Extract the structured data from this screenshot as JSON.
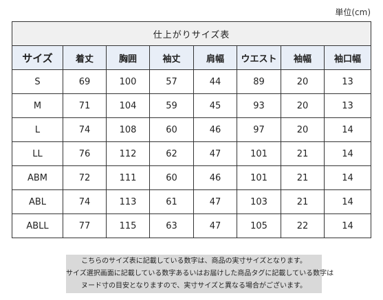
{
  "unit_label": "単位(cm)",
  "table": {
    "title": "仕上がりサイズ表",
    "headers": [
      "サイズ",
      "着丈",
      "胸囲",
      "袖丈",
      "肩幅",
      "ウエスト",
      "袖幅",
      "袖口幅"
    ],
    "rows": [
      [
        "S",
        "69",
        "100",
        "57",
        "44",
        "89",
        "20",
        "13"
      ],
      [
        "M",
        "71",
        "104",
        "59",
        "45",
        "93",
        "20",
        "13"
      ],
      [
        "L",
        "74",
        "108",
        "60",
        "46",
        "97",
        "20",
        "14"
      ],
      [
        "LL",
        "76",
        "112",
        "62",
        "47",
        "101",
        "21",
        "14"
      ],
      [
        "ABM",
        "72",
        "111",
        "60",
        "46",
        "101",
        "21",
        "14"
      ],
      [
        "ABL",
        "74",
        "113",
        "61",
        "47",
        "103",
        "21",
        "14"
      ],
      [
        "ABLL",
        "77",
        "115",
        "63",
        "47",
        "105",
        "22",
        "14"
      ]
    ]
  },
  "note": {
    "lines": [
      "こちらのサイズ表に記載している数字は、商品の実寸サイズとなります。",
      "サイズ選択画面に記載している数字あるいはお届けした商品タグに記載している数字は",
      "ヌード寸の目安となりますので、実寸サイズと異なる場合がございます。"
    ]
  }
}
